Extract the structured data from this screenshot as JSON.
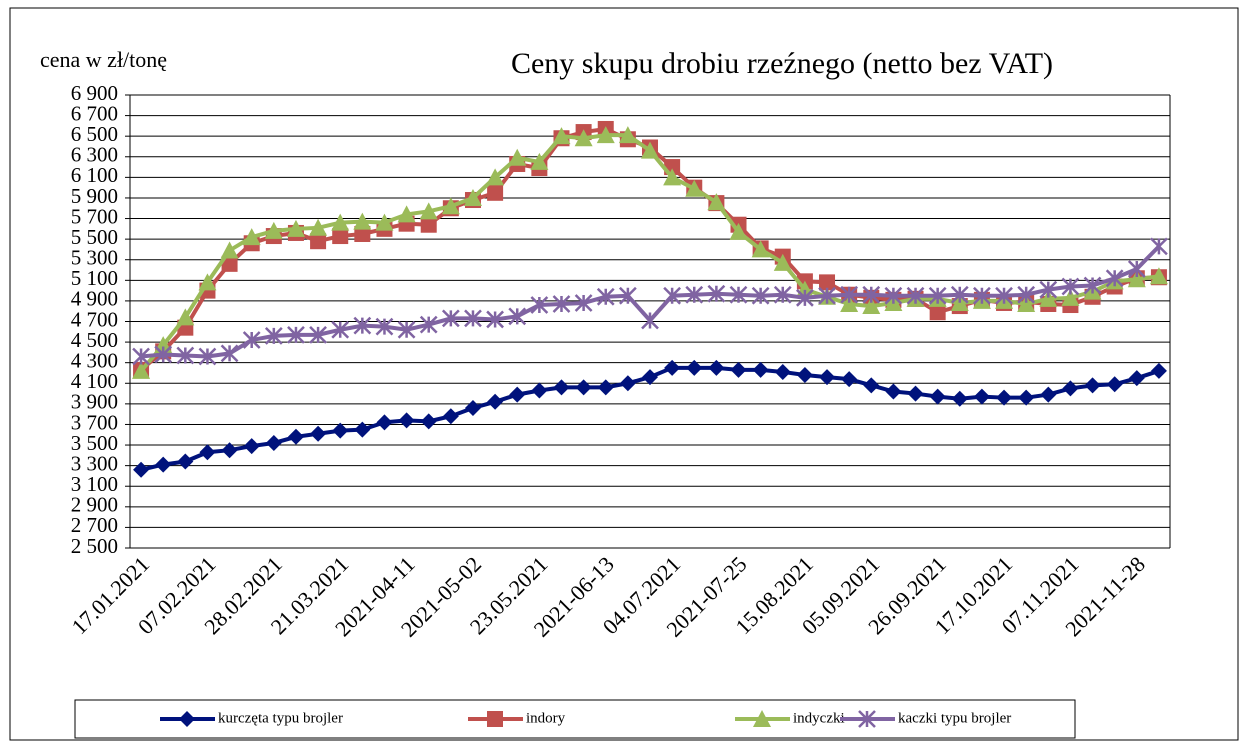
{
  "chart_data": {
    "type": "line",
    "title": "Ceny skupu drobiu rzeźnego (netto bez VAT)",
    "y_label": "cena w zł/tonę",
    "categories": [
      "17.01.2021",
      null,
      null,
      "07.02.2021",
      null,
      null,
      "28.02.2021",
      null,
      null,
      "21.03.2021",
      null,
      null,
      "2021-04-11",
      null,
      null,
      "2021-05-02",
      null,
      null,
      "23.05.2021",
      null,
      null,
      "2021-06-13",
      null,
      null,
      "04.07.2021",
      null,
      null,
      "2021-07-25",
      null,
      null,
      "15.08.2021",
      null,
      null,
      "05.09.2021",
      null,
      null,
      "26.09.2021",
      null,
      null,
      "17.10.2021",
      null,
      null,
      "07.11.2021",
      null,
      null,
      "2021-11-28",
      null
    ],
    "series": [
      {
        "name": "kurczęta typu brojler",
        "color": "#00127c",
        "marker": "diamond",
        "values": [
          3260,
          3310,
          3340,
          3430,
          3450,
          3490,
          3520,
          3580,
          3610,
          3640,
          3650,
          3720,
          3740,
          3730,
          3780,
          3860,
          3920,
          3990,
          4030,
          4060,
          4060,
          4060,
          4100,
          4160,
          4250,
          4250,
          4250,
          4230,
          4230,
          4210,
          4180,
          4160,
          4140,
          4080,
          4020,
          4000,
          3970,
          3950,
          3970,
          3960,
          3960,
          3990,
          4050,
          4080,
          4090,
          4150,
          4220
        ]
      },
      {
        "name": "indory",
        "color": "#c0504d",
        "marker": "square",
        "values": [
          4230,
          4410,
          4640,
          5000,
          5260,
          5460,
          5530,
          5560,
          5480,
          5530,
          5550,
          5600,
          5650,
          5640,
          5800,
          5880,
          5950,
          6230,
          6190,
          6480,
          6540,
          6570,
          6470,
          6390,
          6200,
          6000,
          5850,
          5640,
          5410,
          5330,
          5090,
          5080,
          4960,
          4930,
          4910,
          4920,
          4790,
          4850,
          4910,
          4880,
          4890,
          4870,
          4860,
          4940,
          5040,
          5120,
          5130
        ]
      },
      {
        "name": "indyczki",
        "color": "#9bbb59",
        "marker": "triangle",
        "values": [
          4220,
          4470,
          4740,
          5080,
          5390,
          5520,
          5580,
          5600,
          5610,
          5660,
          5670,
          5660,
          5740,
          5770,
          5820,
          5900,
          6100,
          6290,
          6250,
          6500,
          6480,
          6510,
          6510,
          6360,
          6100,
          5990,
          5860,
          5570,
          5400,
          5270,
          5010,
          4940,
          4870,
          4850,
          4880,
          4920,
          4920,
          4880,
          4900,
          4900,
          4870,
          4920,
          4930,
          4990,
          5090,
          5110,
          5140
        ]
      },
      {
        "name": "kaczki typu brojler",
        "color": "#8064a2",
        "marker": "star",
        "values": [
          4360,
          4380,
          4370,
          4360,
          4390,
          4520,
          4560,
          4570,
          4570,
          4620,
          4660,
          4650,
          4620,
          4670,
          4730,
          4730,
          4720,
          4750,
          4860,
          4870,
          4880,
          4940,
          4950,
          4710,
          4950,
          4960,
          4970,
          4960,
          4950,
          4960,
          4930,
          4950,
          4960,
          4960,
          4950,
          4950,
          4950,
          4960,
          4950,
          4950,
          4960,
          5010,
          5040,
          5050,
          5120,
          5210,
          5430
        ]
      }
    ],
    "ylim": [
      2500,
      6900
    ],
    "yticks": [
      {
        "value": 2500,
        "label": "2 500"
      },
      {
        "value": 2700,
        "label": "2 700"
      },
      {
        "value": 2900,
        "label": "2 900"
      },
      {
        "value": 3100,
        "label": "3 100"
      },
      {
        "value": 3300,
        "label": "3 300"
      },
      {
        "value": 3500,
        "label": "3 500"
      },
      {
        "value": 3700,
        "label": "3 700"
      },
      {
        "value": 3900,
        "label": "3 900"
      },
      {
        "value": 4100,
        "label": "4 100"
      },
      {
        "value": 4300,
        "label": "4 300"
      },
      {
        "value": 4500,
        "label": "4 500"
      },
      {
        "value": 4700,
        "label": "4 700"
      },
      {
        "value": 4900,
        "label": "4 900"
      },
      {
        "value": 5100,
        "label": "5 100"
      },
      {
        "value": 5300,
        "label": "5 300"
      },
      {
        "value": 5500,
        "label": "5 500"
      },
      {
        "value": 5700,
        "label": "5 700"
      },
      {
        "value": 5900,
        "label": "5 900"
      },
      {
        "value": 6100,
        "label": "6 100"
      },
      {
        "value": 6300,
        "label": "6 300"
      },
      {
        "value": 6500,
        "label": "6 500"
      },
      {
        "value": 6700,
        "label": "6 700"
      },
      {
        "value": 6900,
        "label": "6 900"
      }
    ],
    "grid": true,
    "legend": "bottom"
  }
}
